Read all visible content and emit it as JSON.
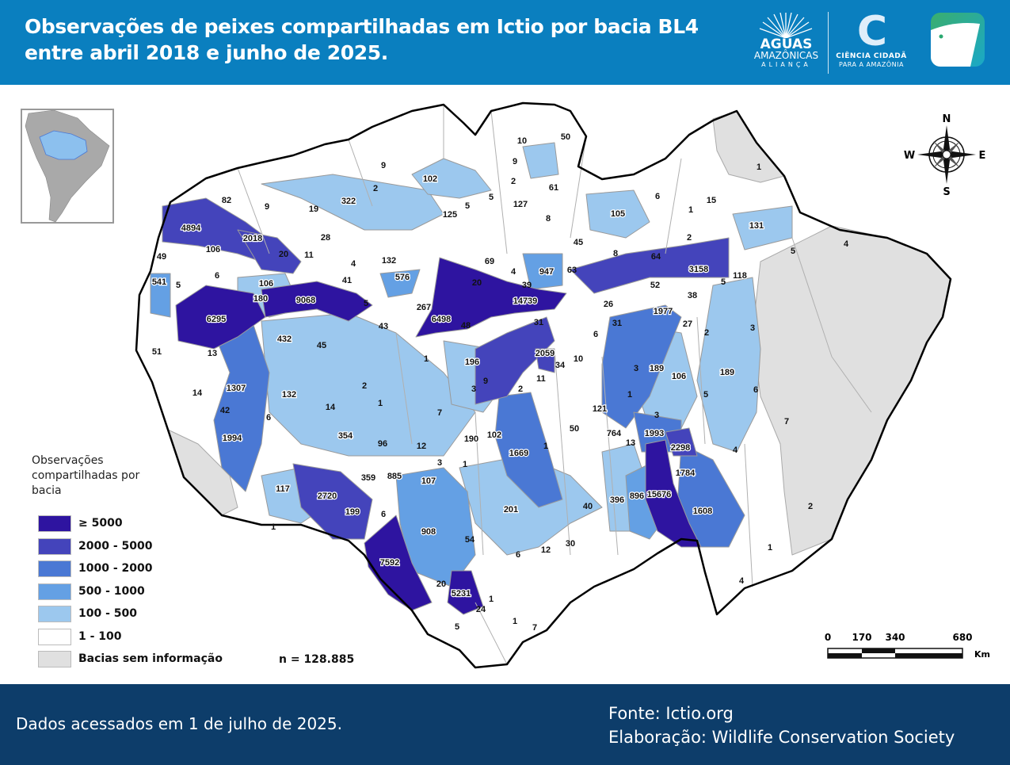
{
  "header": {
    "title_line1": "Observações de peixes compartilhadas em Ictio por bacia BL4",
    "title_line2": "entre abril 2018 e junho de 2025.",
    "logo_aguas": {
      "line1": "AGUAS",
      "line2": "AMAZÔNICAS",
      "line3": "ALIANÇA"
    },
    "logo_ciencia": {
      "mark": "C",
      "line1": "CIÊNCIA CIDADÃ",
      "line2": "PARA A AMAZÔNIA"
    },
    "logo_ictio": "ictio-fish-icon",
    "background": "#0a7fbf"
  },
  "legend": {
    "title": "Observações compartilhadas por bacia",
    "items": [
      {
        "label": "≥ 5000",
        "color": "#2e14a0"
      },
      {
        "label": "2000 - 5000",
        "color": "#4444bb"
      },
      {
        "label": "1000 - 2000",
        "color": "#4a78d4"
      },
      {
        "label": "500 - 1000",
        "color": "#64a0e4"
      },
      {
        "label": "100 - 500",
        "color": "#9cc8ee"
      },
      {
        "label": "1 - 100",
        "color": "#ffffff"
      },
      {
        "label": "Bacias sem informação",
        "color": "#e0e0e0"
      }
    ],
    "total": "n = 128.885"
  },
  "compass": {
    "n": "N",
    "s": "S",
    "e": "E",
    "w": "W"
  },
  "scale": {
    "ticks": [
      "0",
      "170",
      "340",
      "680"
    ],
    "unit": "Km"
  },
  "basin_values": [
    10,
    50,
    9,
    102,
    9,
    2,
    61,
    2,
    82,
    9,
    19,
    322,
    125,
    5,
    5,
    127,
    8,
    105,
    6,
    1,
    15,
    1,
    131,
    45,
    8,
    5,
    4,
    28,
    4894,
    2018,
    20,
    11,
    106,
    49,
    6,
    4,
    132,
    69,
    4,
    947,
    63,
    64,
    3158,
    2,
    118,
    541,
    5,
    106,
    41,
    576,
    20,
    39,
    52,
    5,
    180,
    9068,
    5,
    267,
    14739,
    26,
    38,
    6295,
    6498,
    48,
    31,
    31,
    1977,
    27,
    2,
    3,
    51,
    13,
    432,
    45,
    43,
    6,
    1,
    196,
    2059,
    34,
    10,
    3,
    189,
    106,
    189,
    14,
    1307,
    2,
    9,
    3,
    11,
    2,
    1,
    5,
    6,
    42,
    6,
    132,
    14,
    1,
    7,
    121,
    3,
    7,
    1994,
    354,
    96,
    12,
    190,
    102,
    50,
    764,
    1993,
    13,
    2298,
    1669,
    1,
    4,
    3,
    1,
    359,
    885,
    107,
    1784,
    117,
    2720,
    199,
    6,
    201,
    40,
    396,
    896,
    15676,
    1608,
    1,
    908,
    54,
    12,
    30,
    6,
    2,
    1,
    7592,
    20,
    5231,
    1,
    24,
    4,
    5,
    1,
    7
  ],
  "footer": {
    "date": "Dados acessados em 1 de julho de 2025.",
    "source": "Fonte: Ictio.org",
    "credit": "Elaboração: Wildlife Conservation Society"
  }
}
